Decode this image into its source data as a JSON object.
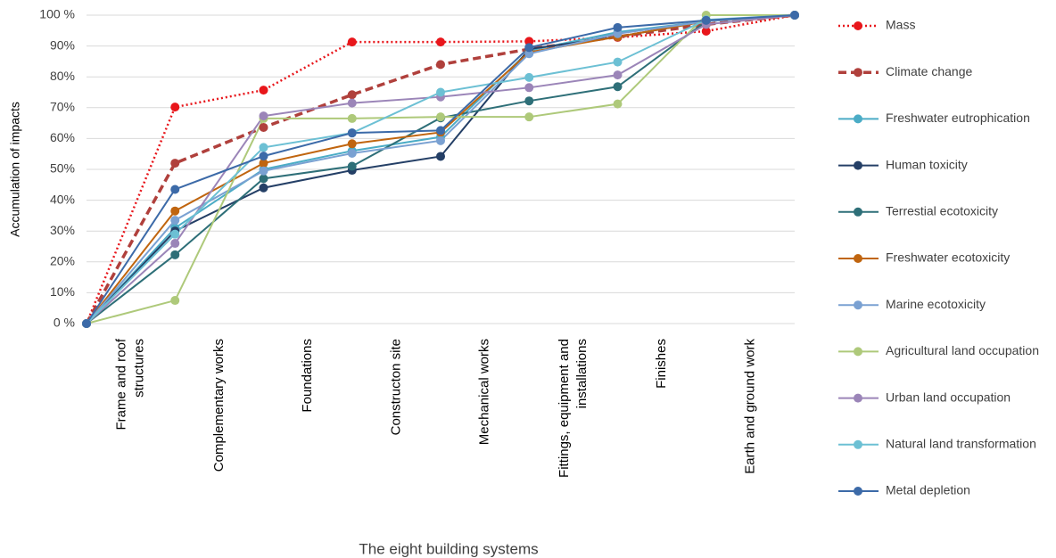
{
  "chart_data": {
    "type": "line",
    "y_label": "Accumulation of impacts",
    "x_label": "The eight building systems",
    "categories": [
      null,
      "Frame and roof structures",
      "Complementary works",
      "Foundations",
      "Constructon site",
      "Mechanical works",
      "Fittings, equipment and installations",
      "Finishes",
      "Earth and ground work"
    ],
    "ylim": [
      0,
      100
    ],
    "yticks": [
      {
        "value": 0,
        "label": "0 %"
      },
      {
        "value": 10,
        "label": "10%"
      },
      {
        "value": 20,
        "label": "20%"
      },
      {
        "value": 30,
        "label": "30%"
      },
      {
        "value": 40,
        "label": "40%"
      },
      {
        "value": 50,
        "label": "50%"
      },
      {
        "value": 60,
        "label": "60%"
      },
      {
        "value": 70,
        "label": "70%"
      },
      {
        "value": 80,
        "label": "80%"
      },
      {
        "value": 90,
        "label": "90%"
      },
      {
        "value": 100,
        "label": "100 %"
      }
    ],
    "grid": true,
    "legend": "right",
    "series": [
      {
        "name": "Mass",
        "color": "#e8161b",
        "style": "dotted",
        "values": [
          0,
          70.2,
          75.7,
          91.3,
          91.3,
          91.5,
          92.8,
          94.8,
          100
        ]
      },
      {
        "name": "Climate change",
        "color": "#b0403c",
        "style": "dashed",
        "values": [
          0,
          52,
          63.6,
          74.2,
          84,
          89,
          93,
          97,
          100
        ]
      },
      {
        "name": "Freshwater eutrophication",
        "color": "#4bacc6",
        "style": "solid",
        "values": [
          0,
          31,
          50,
          56,
          60.5,
          88.5,
          94.5,
          98,
          100
        ]
      },
      {
        "name": "Human toxicity",
        "color": "#243f66",
        "style": "solid",
        "values": [
          0,
          30,
          44,
          49.7,
          54.2,
          89,
          93,
          98,
          100
        ]
      },
      {
        "name": "Terrestial ecotoxicity",
        "color": "#2e6f78",
        "style": "solid",
        "values": [
          0,
          22.3,
          47,
          51,
          66.7,
          72.2,
          76.8,
          98,
          100
        ]
      },
      {
        "name": "Freshwater ecotoxicity",
        "color": "#c0650f",
        "style": "solid",
        "values": [
          0,
          36.5,
          52,
          58.3,
          62,
          88,
          93,
          98,
          100
        ]
      },
      {
        "name": "Marine ecotoxicity",
        "color": "#7aa1d2",
        "style": "solid",
        "values": [
          0,
          33.5,
          49.5,
          55.2,
          59.3,
          87.5,
          94,
          98,
          100
        ]
      },
      {
        "name": "Agricultural land occupation",
        "color": "#aec97a",
        "style": "solid",
        "values": [
          0,
          7.5,
          66.5,
          66.5,
          67,
          67,
          71.2,
          100,
          100
        ]
      },
      {
        "name": "Urban land occupation",
        "color": "#9b85b8",
        "style": "solid",
        "values": [
          0,
          26,
          67.3,
          71.5,
          73.5,
          76.5,
          80.6,
          97,
          100
        ]
      },
      {
        "name": "Natural land transformation",
        "color": "#6cc0d4",
        "style": "solid",
        "values": [
          0,
          29,
          57.1,
          61.8,
          75,
          79.8,
          84.8,
          98.5,
          100
        ]
      },
      {
        "name": "Metal depletion",
        "color": "#3c6aa8",
        "style": "solid",
        "values": [
          0,
          43.5,
          54.3,
          61.8,
          62.6,
          89.5,
          96,
          98.3,
          100
        ]
      }
    ]
  }
}
